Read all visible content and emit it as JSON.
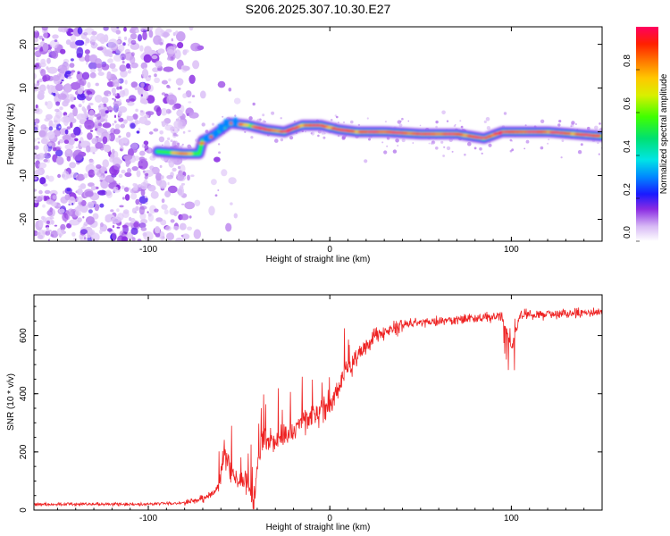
{
  "figure": {
    "title": "S206.2025.307.10.30.E27"
  },
  "chart_data": [
    {
      "type": "heatmap",
      "title": "S206.2025.307.10.30.E27",
      "xlabel": "Height of straight line (km)",
      "ylabel": "Frequency (Hz)",
      "xlim": [
        -163,
        150
      ],
      "ylim": [
        -25,
        24
      ],
      "xticks": [
        -100,
        0,
        100
      ],
      "yticks": [
        -20,
        -10,
        0,
        10,
        20
      ],
      "colorbar": {
        "label": "Normalized spectral amplitude",
        "range": [
          0,
          1
        ],
        "ticks": [
          0.0,
          0.2,
          0.4,
          0.6,
          0.8
        ]
      },
      "ridge": {
        "description_points_km_hz": [
          [
            -95,
            -4.5
          ],
          [
            -80,
            -5
          ],
          [
            -72,
            -5
          ],
          [
            -70,
            -2
          ],
          [
            -65,
            -1
          ],
          [
            -55,
            2
          ],
          [
            -45,
            1.5
          ],
          [
            -35,
            0.5
          ],
          [
            -25,
            0
          ],
          [
            -15,
            1.5
          ],
          [
            -5,
            1.5
          ],
          [
            5,
            0.5
          ],
          [
            15,
            0
          ],
          [
            30,
            0
          ],
          [
            50,
            -0.5
          ],
          [
            70,
            -0.5
          ],
          [
            85,
            -1.5
          ],
          [
            95,
            0
          ],
          [
            120,
            0
          ],
          [
            150,
            -1
          ]
        ]
      }
    },
    {
      "type": "line",
      "xlabel": "Height of straight line (km)",
      "ylabel": "SNR (10 * v/v)",
      "xlim": [
        -163,
        150
      ],
      "ylim": [
        0,
        740
      ],
      "xticks": [
        -100,
        0,
        100
      ],
      "yticks": [
        0,
        200,
        400,
        600
      ],
      "series": [
        {
          "name": "SNR",
          "color": "#ee2222",
          "trend_km_snr": [
            [
              -163,
              20
            ],
            [
              -110,
              20
            ],
            [
              -80,
              25
            ],
            [
              -70,
              40
            ],
            [
              -63,
              60
            ],
            [
              -58,
              200
            ],
            [
              -54,
              120
            ],
            [
              -47,
              100
            ],
            [
              -42,
              30
            ],
            [
              -38,
              230
            ],
            [
              -30,
              240
            ],
            [
              -22,
              270
            ],
            [
              -10,
              330
            ],
            [
              0,
              350
            ],
            [
              8,
              470
            ],
            [
              15,
              530
            ],
            [
              25,
              600
            ],
            [
              40,
              640
            ],
            [
              60,
              650
            ],
            [
              80,
              660
            ],
            [
              95,
              665
            ],
            [
              100,
              560
            ],
            [
              105,
              670
            ],
            [
              150,
              680
            ]
          ]
        }
      ]
    }
  ]
}
